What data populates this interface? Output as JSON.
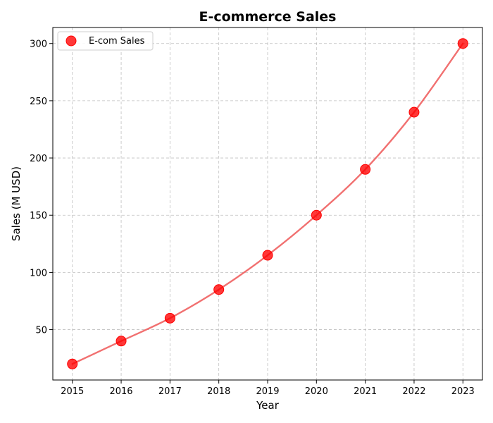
{
  "chart_data": {
    "type": "scatter",
    "title": "E-commerce Sales",
    "xlabel": "Year",
    "ylabel": "Sales (M USD)",
    "x": [
      2015,
      2016,
      2017,
      2018,
      2019,
      2020,
      2021,
      2022,
      2023
    ],
    "series": [
      {
        "name": "E-com Sales",
        "values": [
          20,
          40,
          60,
          85,
          115,
          150,
          190,
          240,
          300
        ],
        "color": "#ff0000",
        "trend_color": "#f06060"
      }
    ],
    "xlim": [
      2014.6,
      2023.4
    ],
    "ylim": [
      6,
      314
    ],
    "xticks": [
      "2015",
      "2016",
      "2017",
      "2018",
      "2019",
      "2020",
      "2021",
      "2022",
      "2023"
    ],
    "yticks": [
      "50",
      "100",
      "150",
      "200",
      "250",
      "300"
    ],
    "grid": true,
    "smooth_trend_line": true,
    "legend_position": "top-left"
  }
}
